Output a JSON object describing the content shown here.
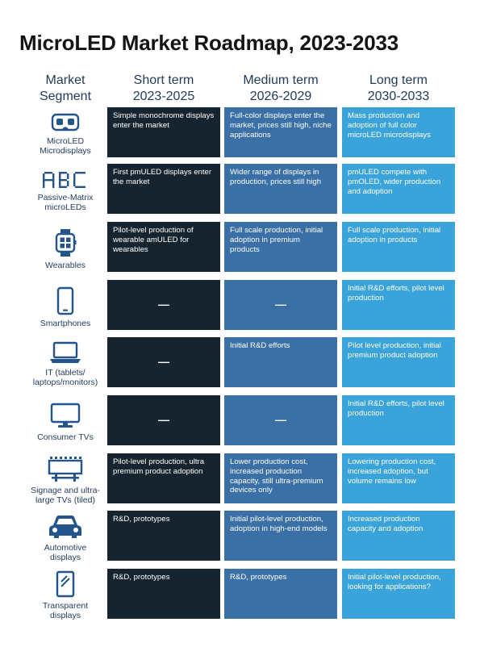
{
  "title": "MicroLED Market Roadmap, 2023-2033",
  "headers": {
    "segment": [
      "Market",
      "Segment"
    ],
    "short": [
      "Short term",
      "2023-2025"
    ],
    "medium": [
      "Medium term",
      "2026-2029"
    ],
    "long": [
      "Long term",
      "2030-2033"
    ]
  },
  "rows": [
    {
      "icon": "vr-headset-icon",
      "label": [
        "MicroLED",
        "Microdisplays"
      ],
      "short": "Simple monochrome displays enter the market",
      "medium": "Full-color displays enter the market, prices still high, niche applications",
      "long": "Mass production and adoption of full color microLED microdisplays"
    },
    {
      "icon": "dot-matrix-abc-icon",
      "label": [
        "Passive-Matrix",
        "microLEDs"
      ],
      "short": "First pmULED displays enter the market",
      "medium": "Wider range of displays in production, prices still high",
      "long": "pmULED compete with pmOLED, wider production and adoption"
    },
    {
      "icon": "smartwatch-icon",
      "label": [
        "Wearables"
      ],
      "short": "Pilot-level production of wearable amULED for wearables",
      "medium": "Full scale production, initial adoption in premium products",
      "long": "Full scale production, initial adoption in products"
    },
    {
      "icon": "smartphone-icon",
      "label": [
        "Smartphones"
      ],
      "short": "—",
      "medium": "—",
      "long": "Initial R&D efforts, pilot level production"
    },
    {
      "icon": "laptop-icon",
      "label": [
        "IT (tablets/",
        "laptops/monitors)"
      ],
      "short": "—",
      "medium": "Initial R&D efforts",
      "long": "Pilot level production, initial premium product adoption"
    },
    {
      "icon": "monitor-icon",
      "label": [
        "Consumer TVs"
      ],
      "short": "—",
      "medium": "—",
      "long": "Initial R&D efforts, pilot level production"
    },
    {
      "icon": "billboard-icon",
      "label": [
        "Signage and ultra-",
        "large TVs (tiled)"
      ],
      "short": "Pilot-level production, ultra premium product adoption",
      "medium": "Lower production cost, increased production capacity, still ultra-premium devices only",
      "long": "Lowering production cost, increased adoption, but volume remains low"
    },
    {
      "icon": "car-icon",
      "label": [
        "Automotive",
        "displays"
      ],
      "short": "R&D, prototypes",
      "medium": "Initial pilot-level production, adoption in high-end models",
      "long": "Increased production capacity and adoption"
    },
    {
      "icon": "transparent-display-icon",
      "label": [
        "Transparent",
        "displays"
      ],
      "short": "R&D, prototypes",
      "medium": "R&D, prototypes",
      "long": "Initial pilot-level production, looking for applications?"
    }
  ]
}
